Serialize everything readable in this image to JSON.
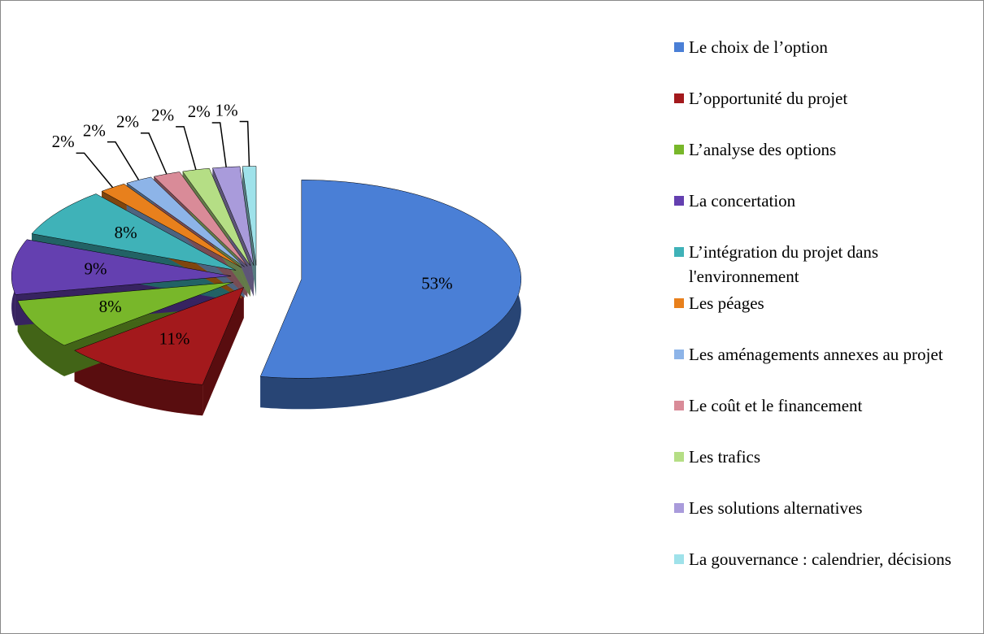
{
  "chart_data": {
    "type": "pie",
    "categories": [
      "Le choix de l’option",
      "L’opportunité du projet",
      "L’analyse des options",
      "La concertation",
      "L’intégration du projet dans l'environnement",
      "Les péages",
      "Les aménagements annexes au projet",
      "Le coût et le financement",
      "Les trafics",
      "Les solutions alternatives",
      "La gouvernance : calendrier, décisions"
    ],
    "values": [
      53,
      11,
      8,
      9,
      8,
      2,
      2,
      2,
      2,
      2,
      1
    ],
    "value_labels": [
      "53%",
      "11%",
      "8%",
      "9%",
      "8%",
      "2%",
      "2%",
      "2%",
      "2%",
      "2%",
      "1%"
    ],
    "colors": [
      "#4a7fd6",
      "#a3191c",
      "#78b72a",
      "#6440b0",
      "#3fb2b8",
      "#e8801c",
      "#8db4e8",
      "#d98b98",
      "#b5de85",
      "#a99bdb",
      "#9fe2ea"
    ],
    "legend": "right"
  }
}
